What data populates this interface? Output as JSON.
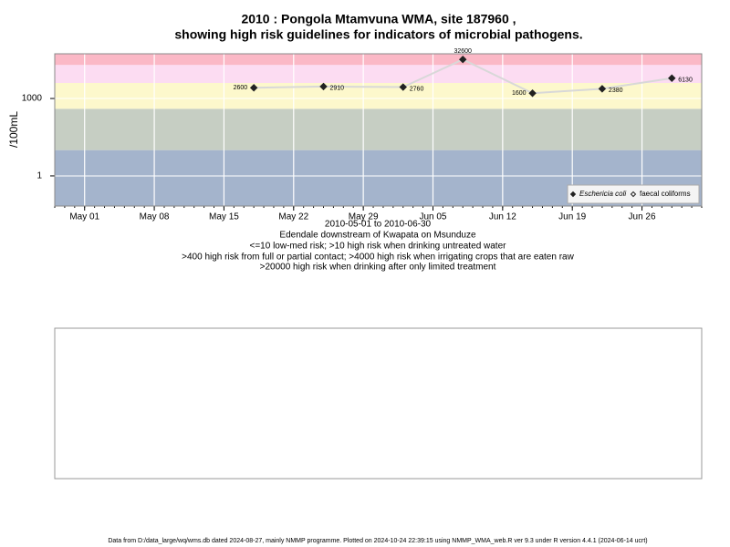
{
  "chart_data": {
    "type": "scatter",
    "title": "2010 : Pongola Mtamvuna WMA, site 187960 ,",
    "title2": "showing high risk guidelines for indicators of microbial pathogens.",
    "xlabel": "2010-05-01 to 2010-06-30",
    "subtitle": [
      "Edendale downstream of Kwapata on Msunduze",
      "<=10 low-med risk; >10 high risk when drinking untreated water",
      ">400 high risk from full or partial contact; >4000 high risk when irrigating crops that are eaten raw",
      ">20000 high risk when drinking after only limited treatment"
    ],
    "ylabel": "/100mL",
    "log_y": true,
    "ylim": [
      0.068,
      54000
    ],
    "yticks": [
      1,
      1000
    ],
    "xlim": [
      "2010-04-28",
      "2010-07-02"
    ],
    "xticks": [
      {
        "value": "2010-05-01",
        "label": "May 01"
      },
      {
        "value": "2010-05-08",
        "label": "May 08"
      },
      {
        "value": "2010-05-15",
        "label": "May 15"
      },
      {
        "value": "2010-05-22",
        "label": "May 22"
      },
      {
        "value": "2010-05-29",
        "label": "May 29"
      },
      {
        "value": "2010-06-05",
        "label": "Jun 05"
      },
      {
        "value": "2010-06-12",
        "label": "Jun 12"
      },
      {
        "value": "2010-06-19",
        "label": "Jun 19"
      },
      {
        "value": "2010-06-26",
        "label": "Jun 26"
      }
    ],
    "bands": [
      {
        "upto": 10,
        "color": "#a4b4cc"
      },
      {
        "upto": 400,
        "color": "#c6cec3"
      },
      {
        "upto": 4000,
        "color": "#fdf8cc"
      },
      {
        "upto": 20000,
        "color": "#fcdcf2"
      },
      {
        "upto": 54000,
        "color": "#fbb8c6"
      }
    ],
    "grid": true,
    "legend": "lower right",
    "x": [
      "2010-05-18",
      "2010-05-25",
      "2010-06-02",
      "2010-06-08",
      "2010-06-15",
      "2010-06-22",
      "2010-06-29"
    ],
    "series": [
      {
        "name": "Eschericia coli",
        "color": "#222222",
        "values": [
          2600,
          2910,
          2760,
          32600,
          1600,
          2380,
          6130
        ]
      },
      {
        "name": "faecal coliforms",
        "color": "#222222",
        "values": [
          null,
          null,
          null,
          null,
          null,
          null,
          null
        ]
      }
    ],
    "footer": "Data from D:/data_large/wq/wms.db dated 2024-08-27, mainly NMMP programme. Plotted on 2024-10-24 22:39:15 using NMMP_WMA_web.R ver 9.3 under R version 4.4.1 (2024-06-14 ucrt)"
  }
}
